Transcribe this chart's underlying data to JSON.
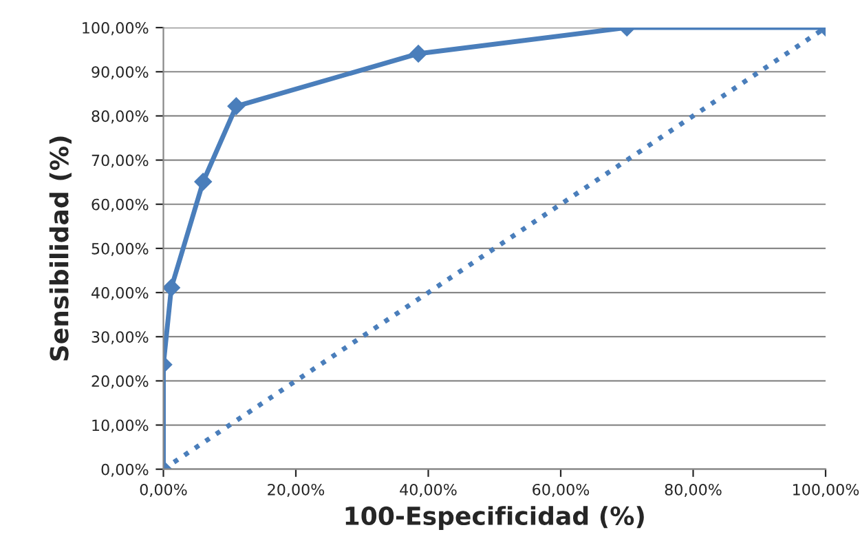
{
  "chart_data": {
    "type": "line",
    "xlabel": "100-Especificidad (%)",
    "ylabel": "Sensibilidad (%)",
    "series": [
      {
        "color": "#4a7ebb",
        "x": [
          0,
          0,
          1.2,
          6.0,
          11.0,
          38.5,
          70.0,
          100.0
        ],
        "values": [
          0,
          23.7,
          41.1,
          65.1,
          82.2,
          94.1,
          100,
          100
        ],
        "marker": "diamond",
        "line_style": "solid"
      },
      {
        "color": "#4a7ebb",
        "x": [
          0,
          100
        ],
        "values": [
          0,
          100
        ],
        "marker": "none",
        "line_style": "dotted"
      }
    ],
    "xlim": [
      0,
      100
    ],
    "ylim": [
      0,
      100
    ],
    "xticks": [
      {
        "value": 0,
        "label": "0,00%"
      },
      {
        "value": 20,
        "label": "20,00%"
      },
      {
        "value": 40,
        "label": "40,00%"
      },
      {
        "value": 60,
        "label": "60,00%"
      },
      {
        "value": 80,
        "label": "80,00%"
      },
      {
        "value": 100,
        "label": "100,00%"
      }
    ],
    "yticks": [
      {
        "value": 0,
        "label": "0,00%"
      },
      {
        "value": 10,
        "label": "10,00%"
      },
      {
        "value": 20,
        "label": "20,00%"
      },
      {
        "value": 30,
        "label": "30,00%"
      },
      {
        "value": 40,
        "label": "40,00%"
      },
      {
        "value": 50,
        "label": "50,00%"
      },
      {
        "value": 60,
        "label": "60,00%"
      },
      {
        "value": 70,
        "label": "70,00%"
      },
      {
        "value": 80,
        "label": "80,00%"
      },
      {
        "value": 90,
        "label": "90,00%"
      },
      {
        "value": 100,
        "label": "100,00%"
      }
    ],
    "grid": "y",
    "legend": false
  }
}
